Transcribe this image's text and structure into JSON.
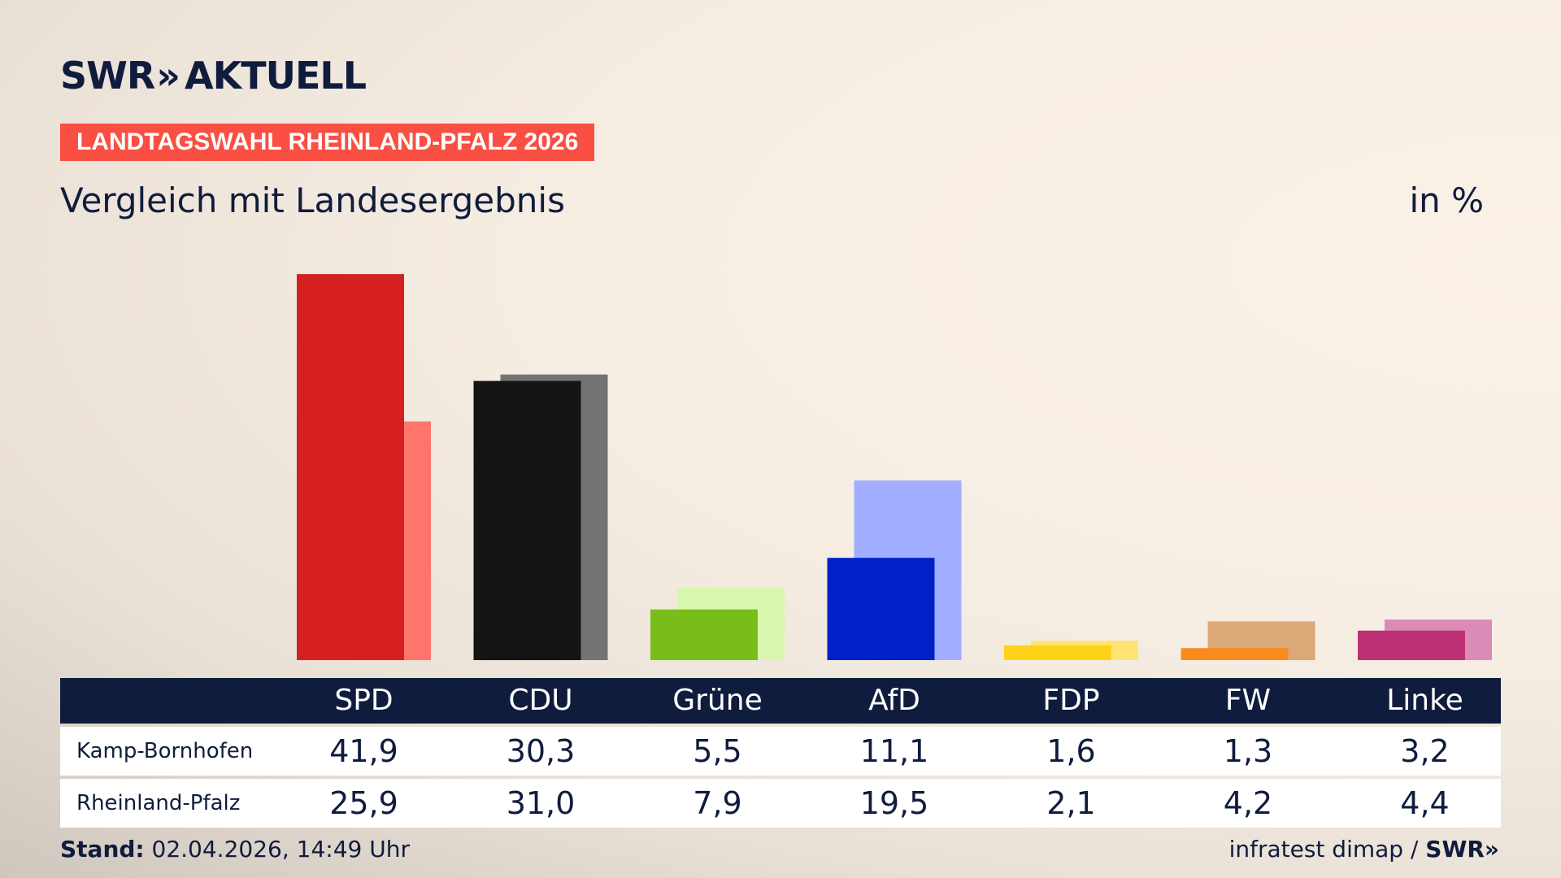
{
  "header": {
    "logo_text": "SWR",
    "logo_arrows": "»",
    "logo_suffix": "AKTUELL",
    "kicker": "LANDTAGSWAHL RHEINLAND-PFALZ 2026",
    "subtitle": "Vergleich mit Landesergebnis",
    "unit": "in %"
  },
  "footer": {
    "stand_label": "Stand:",
    "stand_value": " 02.04.2026, 14:49 Uhr",
    "source": "infratest dimap / ",
    "source_logo": "SWR»"
  },
  "table": {
    "rows": [
      {
        "label": "Kamp-Bornhofen"
      },
      {
        "label": "Rheinland-Pfalz"
      }
    ]
  },
  "chart_data": {
    "type": "bar",
    "categories": [
      "SPD",
      "CDU",
      "Grüne",
      "AfD",
      "FDP",
      "FW",
      "Linke"
    ],
    "series": [
      {
        "name": "Kamp-Bornhofen",
        "values": [
          41.9,
          30.3,
          5.5,
          11.1,
          1.6,
          1.3,
          3.2
        ],
        "labels": [
          "41,9",
          "30,3",
          "5,5",
          "11,1",
          "1,6",
          "1,3",
          "3,2"
        ]
      },
      {
        "name": "Rheinland-Pfalz",
        "values": [
          25.9,
          31.0,
          7.9,
          19.5,
          2.1,
          4.2,
          4.4
        ],
        "labels": [
          "25,9",
          "31,0",
          "7,9",
          "19,5",
          "2,1",
          "4,2",
          "4,4"
        ]
      }
    ],
    "colors_primary": [
      "#d6201f",
      "#141414",
      "#79bd1b",
      "#0121c8",
      "#ffd21a",
      "#f98b1c",
      "#be3075"
    ],
    "colors_secondary": [
      "#ff756c",
      "#737373",
      "#d9f7ac",
      "#a2aeff",
      "#ffe471",
      "#dba877",
      "#dc8ab6"
    ],
    "ylim": [
      0,
      42
    ],
    "grid": false,
    "legend": "table-below"
  }
}
